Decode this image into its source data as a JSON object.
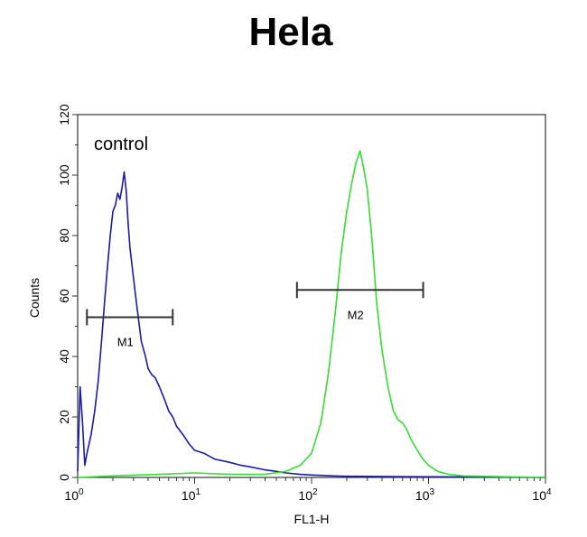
{
  "chart_data": {
    "type": "line",
    "title": "Hela",
    "xlabel": "FL1-H",
    "ylabel": "Counts",
    "x_scale": "log",
    "xlim": [
      1,
      10000
    ],
    "ylim": [
      0,
      120
    ],
    "x_ticks": [
      {
        "value": 1,
        "base": "10",
        "exp": "0"
      },
      {
        "value": 10,
        "base": "10",
        "exp": "1"
      },
      {
        "value": 100,
        "base": "10",
        "exp": "2"
      },
      {
        "value": 1000,
        "base": "10",
        "exp": "3"
      },
      {
        "value": 10000,
        "base": "10",
        "exp": "4"
      }
    ],
    "y_ticks": [
      "0",
      "20",
      "40",
      "60",
      "80",
      "100",
      "120"
    ],
    "grid": false,
    "annotation": "control",
    "series": [
      {
        "color": "#1a1aa6",
        "x": [
          1.0,
          1.05,
          1.1,
          1.15,
          1.2,
          1.3,
          1.4,
          1.5,
          1.6,
          1.7,
          1.8,
          1.9,
          2.0,
          2.1,
          2.2,
          2.3,
          2.4,
          2.5,
          2.6,
          2.7,
          2.8,
          3.0,
          3.2,
          3.5,
          3.8,
          4.0,
          4.3,
          4.6,
          5.0,
          5.5,
          6.0,
          6.5,
          7.0,
          8.0,
          9.0,
          10,
          12,
          15,
          20,
          25,
          30,
          40,
          50,
          60,
          80,
          100,
          150,
          200,
          500,
          1000,
          10000
        ],
        "y": [
          2,
          30,
          18,
          4,
          8,
          14,
          22,
          32,
          45,
          58,
          70,
          80,
          88,
          90,
          94,
          92,
          96,
          101,
          95,
          84,
          76,
          66,
          57,
          45,
          40,
          36,
          34,
          33,
          30,
          26,
          22,
          20,
          17,
          14,
          11,
          9,
          8,
          6,
          5,
          4,
          3.5,
          2.5,
          2,
          1.5,
          1,
          0.8,
          0.5,
          0.4,
          0.3,
          0.2,
          0
        ]
      },
      {
        "color": "#33dd33",
        "x": [
          1,
          2,
          5,
          10,
          20,
          40,
          60,
          80,
          100,
          120,
          140,
          160,
          180,
          200,
          220,
          240,
          260,
          280,
          300,
          330,
          360,
          400,
          450,
          500,
          550,
          600,
          650,
          700,
          800,
          900,
          1000,
          1200,
          1500,
          2000,
          5000,
          10000
        ],
        "y": [
          0,
          0.5,
          1,
          1.5,
          1,
          1,
          2,
          4,
          8,
          18,
          35,
          55,
          75,
          88,
          97,
          104,
          108,
          102,
          95,
          78,
          58,
          42,
          30,
          22,
          19,
          18,
          16,
          13,
          9,
          6,
          4,
          2,
          1,
          0.5,
          0.2,
          0
        ]
      }
    ],
    "markers": [
      {
        "label": "M1",
        "x": [
          1.2,
          6.5
        ],
        "y": 53
      },
      {
        "label": "M2",
        "x": [
          75,
          900
        ],
        "y": 62
      }
    ]
  }
}
